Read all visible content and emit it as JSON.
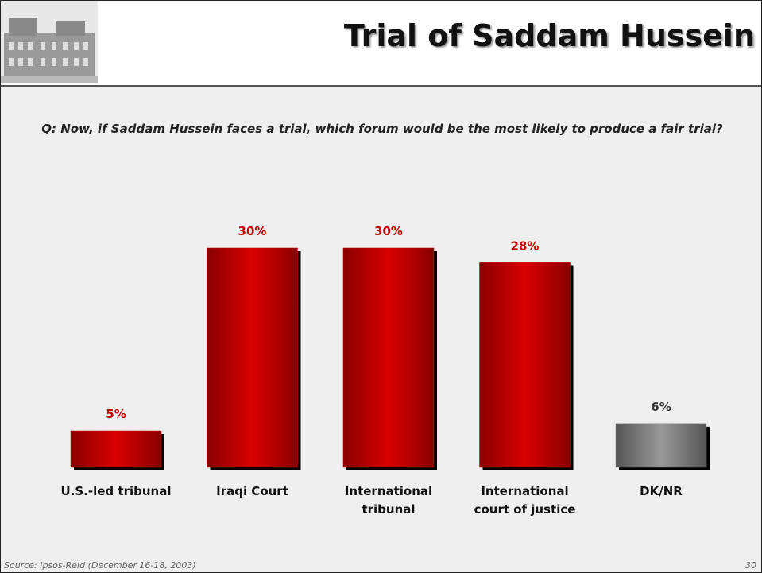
{
  "chart_data": {
    "type": "bar",
    "title": "Trial of Saddam Hussein",
    "subtitle": "Q: Now, if Saddam Hussein faces a trial, which forum would be the most likely to produce a fair trial?",
    "categories": [
      "U.S.-led tribunal",
      "Iraqi Court",
      "International tribunal",
      "International court of justice",
      "DK/NR"
    ],
    "values": [
      5,
      30,
      30,
      28,
      6
    ],
    "value_labels": [
      "5%",
      "30%",
      "30%",
      "28%",
      "6%"
    ],
    "colors": [
      "#c00000",
      "#c00000",
      "#c00000",
      "#c00000",
      "#7f7f7f"
    ],
    "label_colors": [
      "#c00000",
      "#c00000",
      "#c00000",
      "#c00000",
      "#333333"
    ],
    "source": "Source: Ipsos-Reid (December 16-18, 2003)",
    "page": "30"
  }
}
